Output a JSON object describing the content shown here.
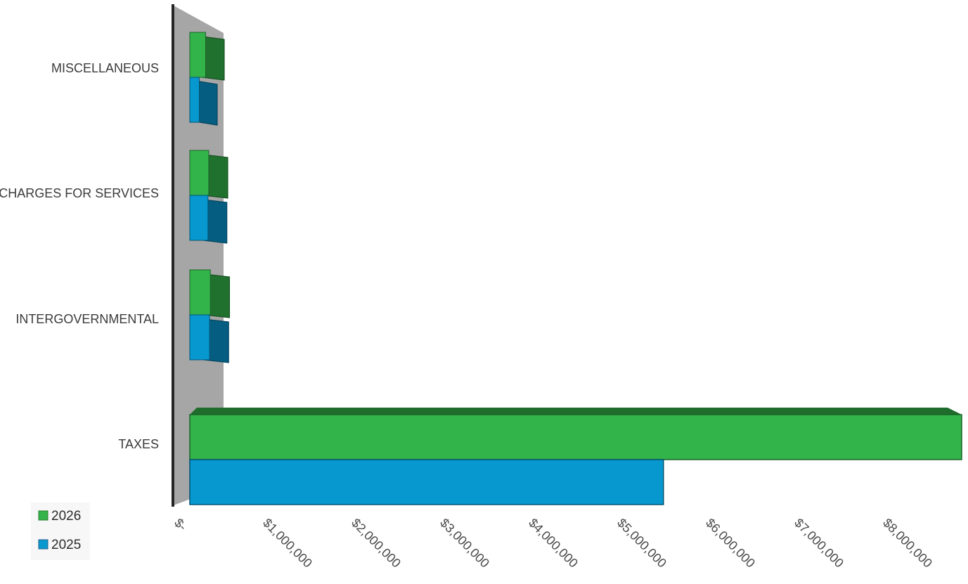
{
  "chart_data": {
    "type": "bar",
    "orientation": "horizontal",
    "style": "3d",
    "title": "",
    "xlabel": "",
    "ylabel": "",
    "categories": [
      "TAXES",
      "INTERGOVERNMENTAL",
      "CHARGES FOR SERVICES",
      "MISCELLANEOUS"
    ],
    "series": [
      {
        "name": "2025",
        "color": "#0898d0",
        "values": [
          5400000,
          250000,
          230000,
          120000
        ]
      },
      {
        "name": "2026",
        "color": "#33b44a",
        "values": [
          8800000,
          260000,
          240000,
          200000
        ]
      }
    ],
    "xlim": [
      0,
      8800000
    ],
    "x_ticks": [
      0,
      1000000,
      2000000,
      3000000,
      4000000,
      5000000,
      6000000,
      7000000,
      8000000
    ],
    "x_tick_labels": [
      "$-",
      "$1,000,000",
      "$2,000,000",
      "$3,000,000",
      "$4,000,000",
      "$5,000,000",
      "$6,000,000",
      "$7,000,000",
      "$8,000,000"
    ],
    "legend_position": "bottom-left",
    "legend": [
      "2026",
      "2025"
    ],
    "grid": false,
    "back_wall_color": "#a6a6a6"
  }
}
